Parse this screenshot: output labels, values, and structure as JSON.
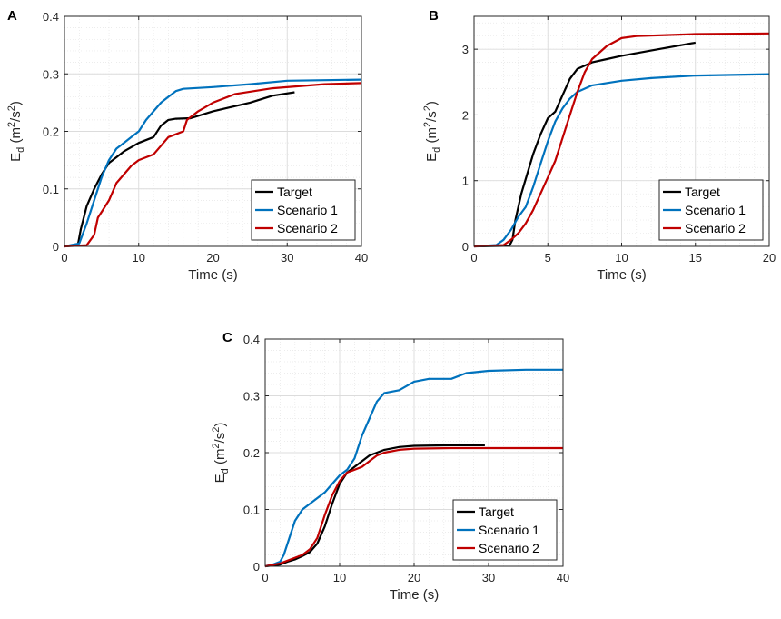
{
  "chart_data": [
    {
      "type": "line",
      "panel_label": "A",
      "xlabel": "Time (s)",
      "ylabel": {
        "main": "E",
        "sub": "d",
        "unit_open": "(m",
        "sup1": "2",
        "unit_mid": "/s",
        "sup2": "2",
        "unit_close": ")"
      },
      "xlim": [
        0,
        40
      ],
      "ylim": [
        0,
        0.4
      ],
      "xticks": [
        0,
        10,
        20,
        30,
        40
      ],
      "yticks": [
        0,
        0.1,
        0.2,
        0.3,
        0.4
      ],
      "xtick_labels": [
        "0",
        "10",
        "20",
        "30",
        "40"
      ],
      "ytick_labels": [
        "0",
        "0.1",
        "0.2",
        "0.3",
        "0.4"
      ],
      "grid": true,
      "legend_position": "bottom-right",
      "series": [
        {
          "name": "Target",
          "color": "#000000",
          "x": [
            0,
            1.8,
            2.2,
            3,
            4,
            5,
            6,
            7,
            8,
            10,
            12,
            13,
            14,
            15,
            17,
            20,
            25,
            28,
            31
          ],
          "y": [
            0,
            0.002,
            0.03,
            0.07,
            0.1,
            0.125,
            0.145,
            0.155,
            0.165,
            0.18,
            0.19,
            0.21,
            0.22,
            0.222,
            0.223,
            0.235,
            0.25,
            0.262,
            0.268
          ]
        },
        {
          "name": "Scenario 1",
          "color": "#0072BD",
          "x": [
            0,
            2,
            3,
            4,
            5,
            6,
            7,
            8,
            9,
            10,
            11,
            12,
            13,
            14,
            15,
            16,
            20,
            25,
            30,
            40
          ],
          "y": [
            0,
            0.005,
            0.04,
            0.08,
            0.12,
            0.15,
            0.17,
            0.18,
            0.19,
            0.2,
            0.22,
            0.235,
            0.25,
            0.26,
            0.27,
            0.274,
            0.277,
            0.282,
            0.288,
            0.29
          ]
        },
        {
          "name": "Scenario 2",
          "color": "#C00000",
          "x": [
            0,
            3,
            4,
            4.5,
            5,
            6,
            7,
            8,
            9,
            10,
            11,
            12,
            13,
            14,
            15,
            16,
            16.5,
            18,
            20,
            23,
            28,
            35,
            40
          ],
          "y": [
            0,
            0.002,
            0.02,
            0.05,
            0.06,
            0.08,
            0.11,
            0.125,
            0.14,
            0.15,
            0.155,
            0.16,
            0.175,
            0.19,
            0.195,
            0.2,
            0.22,
            0.235,
            0.25,
            0.265,
            0.275,
            0.282,
            0.284
          ]
        }
      ]
    },
    {
      "type": "line",
      "panel_label": "B",
      "xlabel": "Time (s)",
      "ylabel": {
        "main": "E",
        "sub": "d",
        "unit_open": "(m",
        "sup1": "2",
        "unit_mid": "/s",
        "sup2": "2",
        "unit_close": ")"
      },
      "xlim": [
        0,
        20
      ],
      "ylim": [
        0,
        3.5
      ],
      "xticks": [
        0,
        5,
        10,
        15,
        20
      ],
      "yticks": [
        0,
        1,
        2,
        3
      ],
      "xtick_labels": [
        "0",
        "5",
        "10",
        "15",
        "20"
      ],
      "ytick_labels": [
        "0",
        "1",
        "2",
        "3"
      ],
      "grid": true,
      "legend_position": "bottom-right",
      "series": [
        {
          "name": "Target",
          "color": "#000000",
          "x": [
            0,
            2.4,
            2.6,
            2.8,
            3.2,
            3.6,
            4,
            4.5,
            5,
            5.5,
            6,
            6.5,
            7,
            8,
            9,
            10,
            12,
            15
          ],
          "y": [
            0,
            0.01,
            0.1,
            0.4,
            0.8,
            1.1,
            1.4,
            1.7,
            1.95,
            2.05,
            2.3,
            2.55,
            2.7,
            2.8,
            2.85,
            2.9,
            2.98,
            3.1
          ]
        },
        {
          "name": "Scenario 1",
          "color": "#0072BD",
          "x": [
            0,
            1.5,
            2,
            2.5,
            3,
            3.5,
            4,
            4.5,
            5,
            5.5,
            6,
            6.5,
            7,
            8,
            10,
            12,
            15,
            20
          ],
          "y": [
            0,
            0.02,
            0.1,
            0.25,
            0.45,
            0.6,
            0.9,
            1.25,
            1.6,
            1.9,
            2.1,
            2.25,
            2.35,
            2.45,
            2.52,
            2.56,
            2.6,
            2.62
          ]
        },
        {
          "name": "Scenario 2",
          "color": "#C00000",
          "x": [
            0,
            2,
            2.5,
            3,
            3.5,
            4,
            4.5,
            5,
            5.5,
            6,
            6.5,
            7,
            7.5,
            8,
            9,
            10,
            11,
            15,
            20
          ],
          "y": [
            0,
            0.02,
            0.1,
            0.2,
            0.35,
            0.55,
            0.8,
            1.05,
            1.3,
            1.65,
            2.0,
            2.35,
            2.65,
            2.85,
            3.05,
            3.17,
            3.2,
            3.23,
            3.24
          ]
        }
      ]
    },
    {
      "type": "line",
      "panel_label": "C",
      "xlabel": "Time (s)",
      "ylabel": {
        "main": "E",
        "sub": "d",
        "unit_open": "(m",
        "sup1": "2",
        "unit_mid": "/s",
        "sup2": "2",
        "unit_close": ")"
      },
      "xlim": [
        0,
        40
      ],
      "ylim": [
        0,
        0.4
      ],
      "xticks": [
        0,
        10,
        20,
        30,
        40
      ],
      "yticks": [
        0,
        0.1,
        0.2,
        0.3,
        0.4
      ],
      "xtick_labels": [
        "0",
        "10",
        "20",
        "30",
        "40"
      ],
      "ytick_labels": [
        "0",
        "0.1",
        "0.2",
        "0.3",
        "0.4"
      ],
      "grid": true,
      "legend_position": "bottom-right",
      "series": [
        {
          "name": "Target",
          "color": "#000000",
          "x": [
            0,
            2,
            3,
            4,
            5,
            6,
            7,
            8,
            9,
            10,
            11,
            12,
            13,
            14,
            15,
            16,
            18,
            20,
            25,
            29.5
          ],
          "y": [
            0,
            0.003,
            0.008,
            0.012,
            0.018,
            0.025,
            0.04,
            0.07,
            0.11,
            0.145,
            0.165,
            0.175,
            0.185,
            0.195,
            0.2,
            0.205,
            0.21,
            0.212,
            0.213,
            0.213
          ]
        },
        {
          "name": "Scenario 1",
          "color": "#0072BD",
          "x": [
            0,
            1,
            2,
            2.5,
            3,
            4,
            5,
            6,
            7,
            8,
            9,
            10,
            11,
            12,
            13,
            14,
            15,
            16,
            18,
            20,
            22,
            25,
            27,
            30,
            35,
            40
          ],
          "y": [
            0,
            0.003,
            0.008,
            0.02,
            0.04,
            0.08,
            0.1,
            0.11,
            0.12,
            0.13,
            0.145,
            0.16,
            0.17,
            0.19,
            0.23,
            0.26,
            0.29,
            0.305,
            0.31,
            0.325,
            0.33,
            0.33,
            0.34,
            0.344,
            0.346,
            0.346
          ]
        },
        {
          "name": "Scenario 2",
          "color": "#C00000",
          "x": [
            0,
            2,
            4,
            5,
            6,
            7,
            8,
            9,
            10,
            11,
            12,
            13,
            14,
            15,
            16,
            18,
            20,
            25,
            30,
            40
          ],
          "y": [
            0,
            0.005,
            0.015,
            0.02,
            0.03,
            0.05,
            0.09,
            0.125,
            0.15,
            0.165,
            0.17,
            0.175,
            0.185,
            0.195,
            0.2,
            0.205,
            0.207,
            0.208,
            0.208,
            0.208
          ]
        }
      ]
    }
  ]
}
